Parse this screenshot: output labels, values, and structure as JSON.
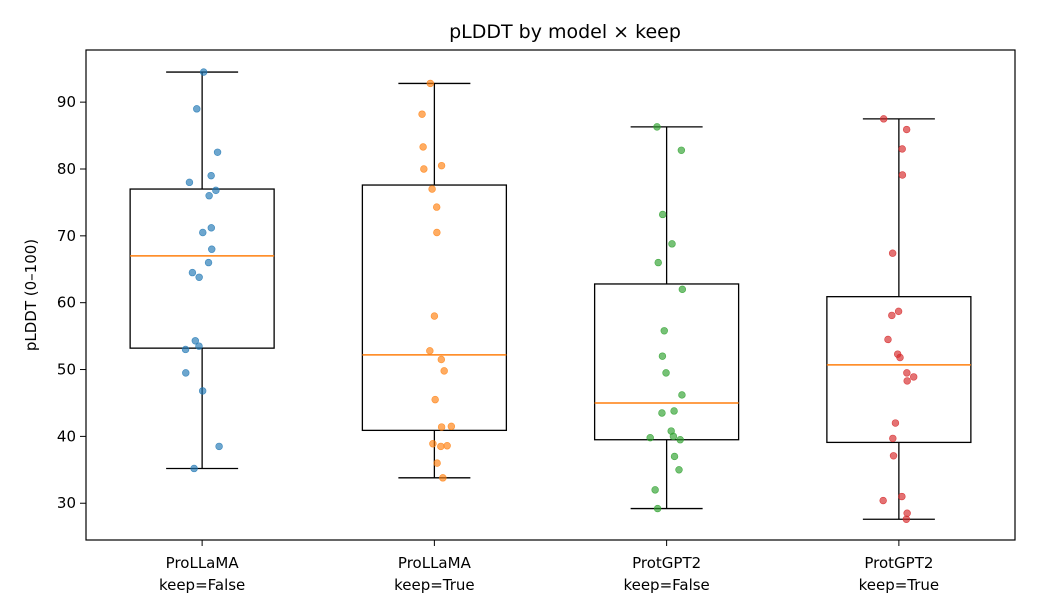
{
  "chart_data": {
    "type": "box",
    "title": "pLDDT by model × keep",
    "xlabel": "",
    "ylabel": "pLDDT (0–100)",
    "ylim": [
      24.5,
      97.8
    ],
    "yticks": [
      30,
      40,
      50,
      60,
      70,
      80,
      90
    ],
    "grid": false,
    "categories": [
      {
        "line1": "ProLLaMA",
        "line2": "keep=False"
      },
      {
        "line1": "ProLLaMA",
        "line2": "keep=True"
      },
      {
        "line1": "ProtGPT2",
        "line2": "keep=False"
      },
      {
        "line1": "ProtGPT2",
        "line2": "keep=True"
      }
    ],
    "boxes": [
      {
        "whisker_low": 35.2,
        "q1": 53.2,
        "median": 67.0,
        "q3": 77.0,
        "whisker_high": 94.5,
        "color": "#1f77b4",
        "points": [
          94.5,
          89.0,
          82.5,
          79.0,
          78.0,
          76.8,
          76.0,
          71.2,
          70.5,
          68.0,
          66.0,
          64.5,
          63.8,
          54.3,
          53.5,
          53.0,
          49.5,
          46.8,
          38.5,
          35.2
        ]
      },
      {
        "whisker_low": 33.8,
        "q1": 40.9,
        "median": 52.2,
        "q3": 77.6,
        "whisker_high": 92.8,
        "color": "#ff7f0e",
        "points": [
          92.8,
          88.2,
          83.3,
          80.5,
          80.0,
          77.0,
          74.3,
          70.5,
          58.0,
          52.8,
          51.5,
          49.8,
          45.5,
          41.5,
          41.4,
          38.9,
          38.6,
          38.5,
          36.0,
          33.8
        ]
      },
      {
        "whisker_low": 29.2,
        "q1": 39.5,
        "median": 45.0,
        "q3": 62.8,
        "whisker_high": 86.3,
        "color": "#2ca02c",
        "points": [
          86.3,
          82.8,
          73.2,
          68.8,
          66.0,
          62.0,
          55.8,
          52.0,
          49.5,
          46.2,
          43.8,
          43.5,
          40.8,
          40.0,
          39.8,
          39.5,
          37.0,
          35.0,
          32.0,
          29.2
        ]
      },
      {
        "whisker_low": 27.6,
        "q1": 39.1,
        "median": 50.7,
        "q3": 60.9,
        "whisker_high": 87.5,
        "color": "#d62728",
        "points": [
          87.5,
          85.9,
          83.0,
          79.1,
          67.4,
          58.7,
          58.1,
          54.5,
          52.3,
          51.8,
          49.5,
          48.9,
          48.3,
          42.0,
          39.7,
          37.1,
          31.0,
          30.4,
          28.5,
          27.6
        ]
      }
    ],
    "median_color": "#ff7f0e",
    "point_alpha": 0.65
  }
}
